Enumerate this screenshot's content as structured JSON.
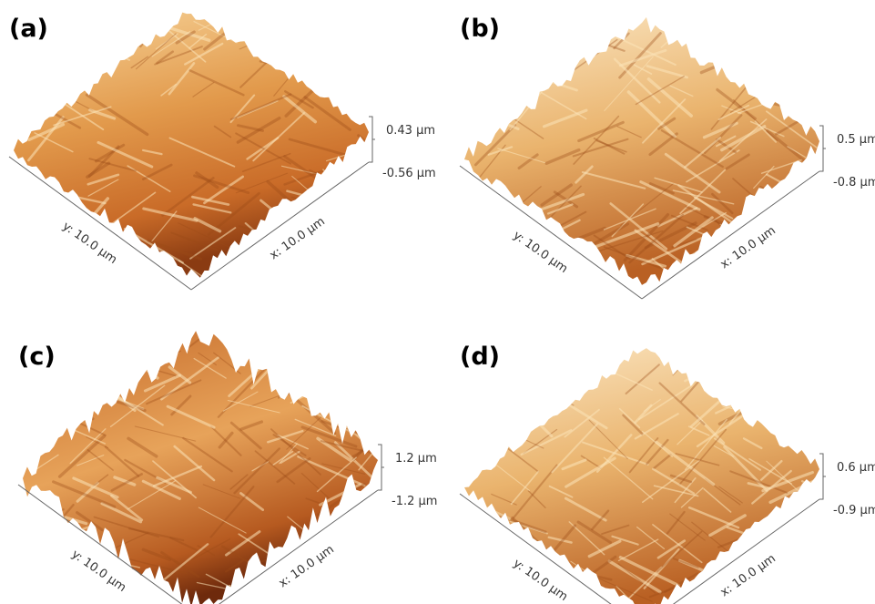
{
  "panels": [
    {
      "label": "(a)",
      "z_top": "0.43 µm",
      "z_bottom": "-0.56 µm",
      "y_axis": "y: 10.0 µm",
      "x_axis": "x: 10.0 µm"
    },
    {
      "label": "(b)",
      "z_top": "0.5 µm",
      "z_bottom": "-0.8 µm",
      "y_axis": "y: 10.0 µm",
      "x_axis": "x: 10.0 µm"
    },
    {
      "label": "(c)",
      "z_top": "1.2 µm",
      "z_bottom": "-1.2 µm",
      "y_axis": "y: 10.0 µm",
      "x_axis": "x: 10.0 µm"
    },
    {
      "label": "(d)",
      "z_top": "0.6 µm",
      "z_bottom": "-0.9 µm",
      "y_axis": "y: 10.0 µm",
      "x_axis": "x: 10.0 µm"
    }
  ]
}
